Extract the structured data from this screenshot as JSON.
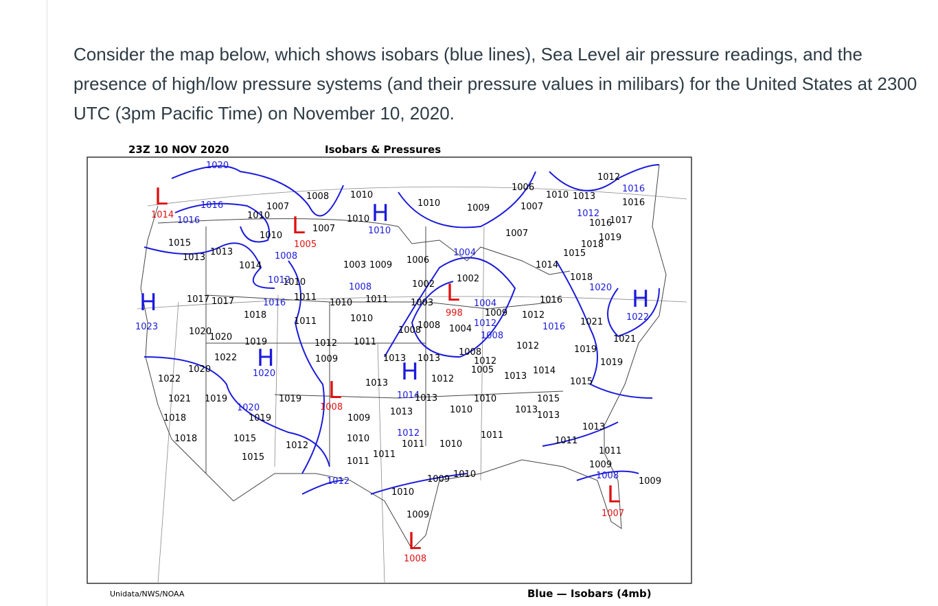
{
  "question": "Consider the map below, which shows isobars (blue lines), Sea Level air pressure readings, and the presence of high/low pressure systems (and their pressure values in milibars) for the United States at 2300 UTC (3pm Pacific Time) on November 10, 2020.",
  "map": {
    "time": "23Z  10 NOV 2020",
    "title": "Isobars & Pressures",
    "credit": "Unidata/NWS/NOAA",
    "legend": "Blue  —  Isobars (4mb)",
    "systems": [
      {
        "symbol": "L",
        "value": "1014"
      },
      {
        "symbol": "H",
        "value": "1023"
      },
      {
        "symbol": "L",
        "value": "1005"
      },
      {
        "symbol": "H",
        "value": "1010"
      },
      {
        "symbol": "H",
        "value": "1020"
      },
      {
        "symbol": "L",
        "value": "1008"
      },
      {
        "symbol": "H",
        "value": "1014"
      },
      {
        "symbol": "L",
        "value": "998"
      },
      {
        "symbol": "H",
        "value": "1022"
      },
      {
        "symbol": "L",
        "value": "1007"
      },
      {
        "symbol": "L",
        "value": "1008"
      }
    ],
    "readings": [
      "1008",
      "1010",
      "1010",
      "1009",
      "1007",
      "1010",
      "1007",
      "1010",
      "1010",
      "1015",
      "1013",
      "1013",
      "1014",
      "1010",
      "1011",
      "1017",
      "1017",
      "1018",
      "1011",
      "1020",
      "1020",
      "1019",
      "1022",
      "1020",
      "1022",
      "1021",
      "1019",
      "1019",
      "1019",
      "1018",
      "1018",
      "1015",
      "1015",
      "1012",
      "1009",
      "1012",
      "1011",
      "1010",
      "1010",
      "1011",
      "1003",
      "1009",
      "1013",
      "1013",
      "1013",
      "1013",
      "1013",
      "1009",
      "1010",
      "1011",
      "1011",
      "1011",
      "1010",
      "1012",
      "1010",
      "1010",
      "1011",
      "1013",
      "1015",
      "1013",
      "1013",
      "1011",
      "1011",
      "1009",
      "1009",
      "1010",
      "1009",
      "1009",
      "1010",
      "1008",
      "1008",
      "1004",
      "1008",
      "1012",
      "1012",
      "1005",
      "1013",
      "1014",
      "1015",
      "1019",
      "1019",
      "1021",
      "1018",
      "1014",
      "1015",
      "1018",
      "1019",
      "1017",
      "1016",
      "1007",
      "1007",
      "1006",
      "1010",
      "1013",
      "1012",
      "1016",
      "1002",
      "1002",
      "1006",
      "1003",
      "1012",
      "1009",
      "1016",
      "1021"
    ],
    "isobar_labels": [
      "1020",
      "1016",
      "1016",
      "1008",
      "1012",
      "1016",
      "1008",
      "1004",
      "1004",
      "1008",
      "1012",
      "1016",
      "1020",
      "1016",
      "1012",
      "1012",
      "1012",
      "1008",
      "1020"
    ]
  }
}
